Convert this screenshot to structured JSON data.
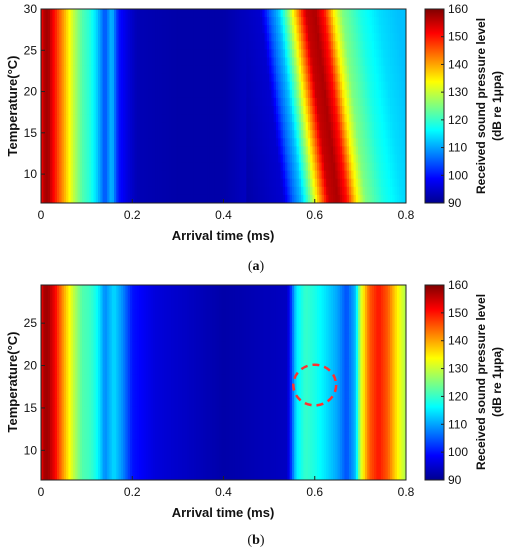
{
  "colors": {
    "jet": [
      "#00008f",
      "#0000ff",
      "#00ffff",
      "#ffff00",
      "#ff0000",
      "#800000"
    ],
    "marker": "#ff3030"
  },
  "chart_data": [
    {
      "type": "heatmap",
      "panel": "a",
      "caption_prefix": "(",
      "caption_letter": "a",
      "caption_suffix": ")",
      "xlabel": "Arrival time (ms)",
      "ylabel": "Temperature(°C)",
      "xlim": [
        0,
        0.8
      ],
      "ylim": [
        6.5,
        30
      ],
      "xticks": [
        "0",
        "0.2",
        "0.4",
        "0.6",
        "0.8"
      ],
      "yticks": [
        10,
        15,
        20,
        25,
        30
      ],
      "colorbar": {
        "label_line1": "Received sound pressure level",
        "label_line2": "(dB re 1μpa)",
        "range": [
          90,
          160
        ],
        "ticks": [
          90,
          100,
          110,
          120,
          130,
          140,
          150,
          160
        ]
      },
      "profile": {
        "x": [
          0,
          0.005,
          0.015,
          0.03,
          0.05,
          0.07,
          0.09,
          0.11,
          0.125,
          0.14,
          0.155,
          0.17,
          0.19,
          0.21,
          0.3,
          0.4,
          0.48,
          0.5,
          0.52,
          0.54,
          0.56,
          0.58,
          0.6,
          0.62,
          0.64,
          0.66,
          0.7,
          0.74,
          0.78,
          0.8
        ],
        "level": [
          150,
          156,
          158,
          150,
          140,
          130,
          122,
          118,
          112,
          104,
          112,
          100,
          96,
          93,
          92,
          92,
          95,
          105,
          112,
          125,
          140,
          155,
          157,
          150,
          135,
          125,
          118,
          114,
          112,
          112
        ]
      },
      "shift_ms_per_degC": 0.0022
    },
    {
      "type": "heatmap",
      "panel": "b",
      "caption_prefix": "(",
      "caption_letter": "b",
      "caption_suffix": ")",
      "xlabel": "Arrival time (ms)",
      "ylabel": "Temperature(°C)",
      "xlim": [
        0,
        0.8
      ],
      "ylim": [
        6.5,
        29.5
      ],
      "xticks": [
        "0",
        "0.2",
        "0.4",
        "0.6",
        "0.8"
      ],
      "yticks": [
        10,
        15,
        20,
        25
      ],
      "colorbar": {
        "label_line1": "Received sound pressure level",
        "label_line2": "(dB re 1μpa)",
        "range": [
          90,
          160
        ],
        "ticks": [
          90,
          100,
          110,
          120,
          130,
          140,
          150,
          160
        ]
      },
      "profile": {
        "x": [
          0,
          0.005,
          0.015,
          0.03,
          0.05,
          0.07,
          0.09,
          0.11,
          0.125,
          0.14,
          0.16,
          0.18,
          0.2,
          0.25,
          0.4,
          0.54,
          0.56,
          0.58,
          0.6,
          0.62,
          0.65,
          0.67,
          0.69,
          0.7,
          0.72,
          0.74,
          0.76,
          0.78,
          0.8
        ],
        "level": [
          150,
          157,
          158,
          152,
          140,
          130,
          122,
          120,
          116,
          108,
          114,
          108,
          100,
          96,
          92,
          94,
          115,
          120,
          118,
          115,
          110,
          104,
          112,
          130,
          145,
          150,
          145,
          135,
          128
        ]
      },
      "shift_ms_per_degC": 0.0,
      "annotation": {
        "type": "dashed-circle",
        "x": 0.6,
        "y": 17.7,
        "rx_ms": 0.047,
        "ry_degC": 2.4
      }
    }
  ]
}
